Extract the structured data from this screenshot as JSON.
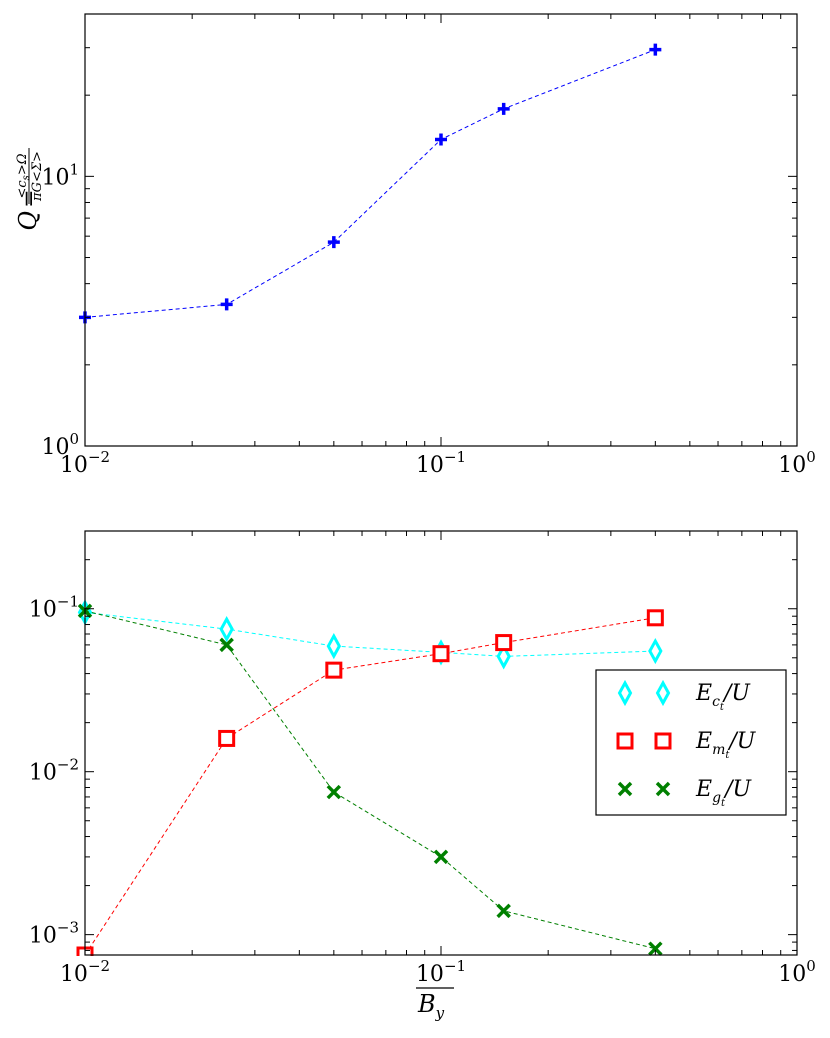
{
  "chart_data": [
    {
      "type": "line",
      "xscale": "log",
      "yscale": "log",
      "xlim": [
        0.01,
        1
      ],
      "ylim": [
        1,
        40
      ],
      "xticks": [
        {
          "base": "10",
          "exp": "−2"
        },
        {
          "base": "10",
          "exp": "−1"
        },
        {
          "base": "10",
          "exp": "0"
        }
      ],
      "yticks": [
        {
          "value": 1,
          "base": "10",
          "exp": "0"
        },
        {
          "value": 10,
          "base": "10",
          "exp": "1"
        }
      ],
      "ylabel": "Q = <cs>Ω / πG<Σ>",
      "ylabel_parts": {
        "lhs": "Q",
        "eq": "=",
        "num": "<c",
        "num_sub": "s",
        "num_end": ">Ω",
        "den": "πG<Σ>"
      },
      "series": [
        {
          "marker": "plus",
          "color": "#0000ff",
          "x": [
            0.01,
            0.025,
            0.05,
            0.1,
            0.15,
            0.4
          ],
          "y": [
            3.0,
            3.35,
            5.7,
            13.7,
            17.8,
            29.5
          ]
        }
      ]
    },
    {
      "type": "line",
      "xscale": "log",
      "yscale": "log",
      "xlim": [
        0.01,
        1
      ],
      "ylim": [
        0.00075,
        0.3
      ],
      "xticks": [
        {
          "base": "10",
          "exp": "−2"
        },
        {
          "base": "10",
          "exp": "−1"
        },
        {
          "base": "10",
          "exp": "0"
        }
      ],
      "yticks": [
        {
          "value": 0.001,
          "base": "10",
          "exp": "−3"
        },
        {
          "value": 0.01,
          "base": "10",
          "exp": "−2"
        },
        {
          "value": 0.1,
          "base": "10",
          "exp": "−1"
        }
      ],
      "xlabel": "B_y (overlined)",
      "xlabel_parts": {
        "main": "B",
        "sub": "y"
      },
      "legend_position": "right",
      "series": [
        {
          "name": "E_ct/U",
          "label_parts": {
            "main": "E",
            "sub": "c",
            "subsub": "t",
            "tail": "/U"
          },
          "marker": "diamond",
          "color": "#00ffff",
          "x": [
            0.01,
            0.025,
            0.05,
            0.1,
            0.15,
            0.4
          ],
          "y": [
            0.095,
            0.075,
            0.059,
            0.054,
            0.051,
            0.055
          ]
        },
        {
          "name": "E_mt/U",
          "label_parts": {
            "main": "E",
            "sub": "m",
            "subsub": "t",
            "tail": "/U"
          },
          "marker": "square",
          "color": "#ff0000",
          "x": [
            0.01,
            0.025,
            0.05,
            0.1,
            0.15,
            0.4
          ],
          "y": [
            0.00075,
            0.016,
            0.042,
            0.053,
            0.062,
            0.088
          ]
        },
        {
          "name": "E_gt/U",
          "label_parts": {
            "main": "E",
            "sub": "g",
            "subsub": "t",
            "tail": "/U"
          },
          "marker": "x",
          "color": "#008000",
          "x": [
            0.01,
            0.025,
            0.05,
            0.1,
            0.15,
            0.4
          ],
          "y": [
            0.097,
            0.06,
            0.0075,
            0.003,
            0.0014,
            0.00082
          ]
        }
      ]
    }
  ]
}
